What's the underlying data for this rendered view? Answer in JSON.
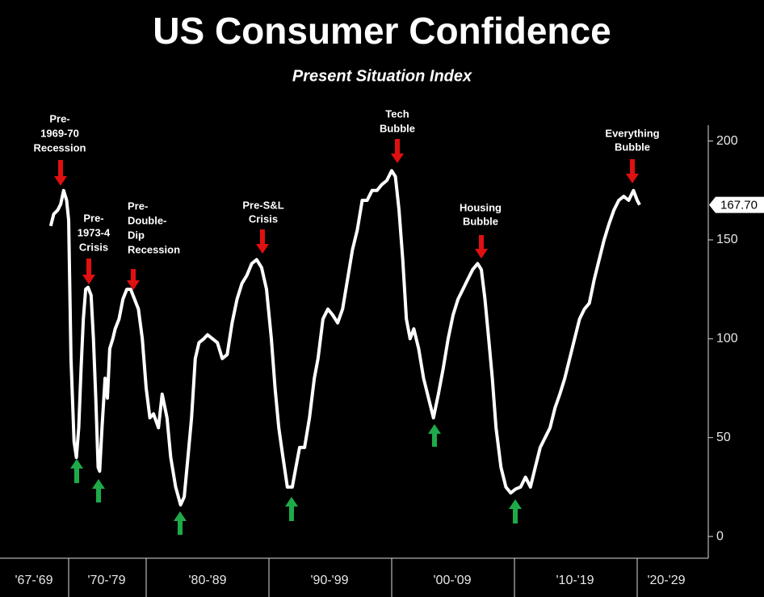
{
  "chart_data": {
    "type": "line",
    "title": "US Consumer Confidence",
    "subtitle": "Present Situation Index",
    "color": "#ffffff",
    "x": [
      1968.2,
      1968.5,
      1968.9,
      1969.2,
      1969.5,
      1969.8,
      1970.0,
      1970.3,
      1970.7,
      1971.0,
      1971.3,
      1971.6,
      1971.9,
      1972.2,
      1972.5,
      1972.9,
      1973.2,
      1973.5,
      1973.8,
      1974.0,
      1974.3,
      1974.7,
      1975.0,
      1975.3,
      1975.7,
      1976.0,
      1976.5,
      1977.0,
      1977.5,
      1978.0,
      1978.5,
      1979.0,
      1979.5,
      1980.0,
      1980.3,
      1980.6,
      1981.0,
      1981.3,
      1981.7,
      1982.0,
      1982.4,
      1982.8,
      1983.1,
      1983.4,
      1983.7,
      1984.0,
      1984.3,
      1984.7,
      1985.0,
      1985.4,
      1985.8,
      1986.2,
      1986.6,
      1987.0,
      1987.4,
      1987.8,
      1988.2,
      1988.6,
      1989.0,
      1989.4,
      1989.8,
      1990.2,
      1990.5,
      1990.8,
      1991.1,
      1991.5,
      1991.9,
      1992.2,
      1992.5,
      1992.9,
      1993.3,
      1993.7,
      1994.0,
      1994.4,
      1994.8,
      1995.2,
      1995.6,
      1996.0,
      1996.4,
      1996.8,
      1997.2,
      1997.6,
      1998.0,
      1998.4,
      1998.8,
      1999.2,
      1999.6,
      2000.0,
      2000.3,
      2000.6,
      2000.9,
      2001.2,
      2001.5,
      2001.8,
      2002.2,
      2002.6,
      2003.0,
      2003.4,
      2003.8,
      2004.2,
      2004.6,
      2005.0,
      2005.4,
      2005.8,
      2006.2,
      2006.6,
      2007.0,
      2007.3,
      2007.6,
      2007.9,
      2008.2,
      2008.5,
      2008.9,
      2009.3,
      2009.7,
      2010.1,
      2010.5,
      2010.9,
      2011.3,
      2011.7,
      2012.1,
      2012.5,
      2012.9,
      2013.3,
      2013.7,
      2014.1,
      2014.5,
      2014.9,
      2015.3,
      2015.7,
      2016.1,
      2016.5,
      2016.9,
      2017.3,
      2017.7,
      2018.1,
      2018.5,
      2018.9,
      2019.3,
      2019.7,
      2020.0,
      2020.2
    ],
    "values": [
      157,
      163,
      165,
      168,
      175,
      170,
      160,
      90,
      48,
      40,
      55,
      85,
      110,
      125,
      126,
      122,
      100,
      70,
      35,
      33,
      55,
      80,
      70,
      95,
      100,
      105,
      110,
      120,
      125,
      125,
      120,
      115,
      100,
      75,
      60,
      62,
      55,
      72,
      60,
      40,
      25,
      16,
      20,
      40,
      60,
      90,
      98,
      100,
      102,
      100,
      98,
      90,
      92,
      108,
      120,
      128,
      132,
      138,
      140,
      136,
      125,
      100,
      75,
      55,
      42,
      25,
      25,
      35,
      45,
      45,
      60,
      80,
      90,
      110,
      115,
      112,
      108,
      115,
      130,
      145,
      155,
      170,
      170,
      175,
      175,
      178,
      180,
      185,
      182,
      165,
      140,
      110,
      100,
      105,
      95,
      80,
      70,
      60,
      72,
      85,
      100,
      112,
      120,
      125,
      130,
      135,
      138,
      135,
      120,
      100,
      80,
      55,
      35,
      25,
      22,
      24,
      25,
      30,
      25,
      35,
      45,
      50,
      55,
      65,
      72,
      80,
      90,
      100,
      110,
      115,
      118,
      130,
      140,
      150,
      158,
      165,
      170,
      172,
      170,
      175,
      170,
      167.7
    ],
    "last_value_label": "167.70",
    "xlim": [
      1967,
      2026
    ],
    "xticks": [
      1970,
      1980,
      1990,
      2000,
      2010,
      2020
    ],
    "x_axis_labels": [
      "'67-'69",
      "'70-'79",
      "'80-'89",
      "'90-'99",
      "'00-'09",
      "'10-'19",
      "'20-'29"
    ],
    "ylim": [
      -11,
      208
    ],
    "yticks": [
      0,
      50,
      100,
      150,
      200
    ],
    "annotations": [
      {
        "lines": [
          "Pre-",
          "1969-70",
          "Recession"
        ]
      },
      {
        "lines": [
          "Pre-",
          "1973-4",
          "Crisis"
        ]
      },
      {
        "lines": [
          "Pre-",
          "Double-",
          "Dip",
          "Recession"
        ]
      },
      {
        "lines": [
          "Pre-S&L",
          "Crisis"
        ]
      },
      {
        "lines": [
          "Tech",
          "Bubble"
        ]
      },
      {
        "lines": [
          "Housing",
          "Bubble"
        ]
      },
      {
        "lines": [
          "Everything",
          "Bubble"
        ]
      }
    ]
  }
}
